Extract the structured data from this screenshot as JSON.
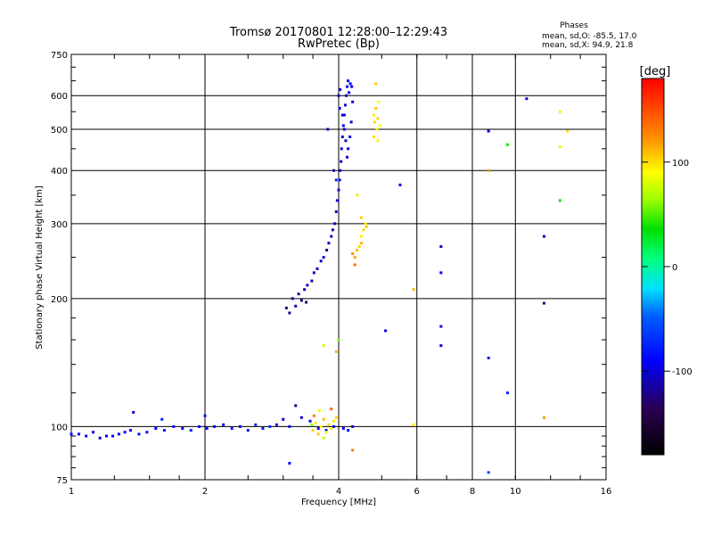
{
  "chart_data": {
    "type": "scatter",
    "title": "Tromsø 20170801 12:28:00–12:29:43",
    "subtitle": "RwPretec (Bp)",
    "xlabel": "Frequency [MHz]",
    "ylabel": "Stationary phase Virtual Height [km]",
    "x_scale": "log",
    "y_scale": "log",
    "xlim": [
      1,
      16
    ],
    "ylim": [
      75,
      750
    ],
    "x_major_ticks": [
      1,
      2,
      4,
      8,
      16
    ],
    "x_minor_ticks": [
      6,
      10
    ],
    "x_tick_labels": [
      "1",
      "2",
      "4",
      "6",
      "8",
      "10",
      "16"
    ],
    "y_ticks": [
      75,
      100,
      200,
      300,
      400,
      500,
      600,
      750
    ],
    "y_tick_labels": [
      "75",
      "100",
      "200",
      "300",
      "400",
      "500",
      "600",
      "750"
    ],
    "grid": true,
    "phase_stats": {
      "heading": "Phases",
      "line_o": "mean, sd,O: -85.5, 17.0",
      "line_x": "mean, sd,X:  94.9, 21.8"
    },
    "colorbar": {
      "label": "[deg]",
      "min": -180,
      "max": 180,
      "ticks": [
        -100,
        0,
        100
      ],
      "tick_labels": [
        "-100",
        "0",
        "100"
      ]
    },
    "series": [
      {
        "mode": "O",
        "points": [
          [
            1.0,
            96,
            -90
          ],
          [
            1.04,
            96,
            -95
          ],
          [
            1.08,
            95,
            -88
          ],
          [
            1.12,
            97,
            -92
          ],
          [
            1.16,
            94,
            -100
          ],
          [
            1.2,
            95,
            -90
          ],
          [
            1.24,
            95,
            -85
          ],
          [
            1.28,
            96,
            -95
          ],
          [
            1.32,
            97,
            -88
          ],
          [
            1.36,
            98,
            -92
          ],
          [
            1.38,
            108,
            -110
          ],
          [
            1.42,
            96,
            -85
          ],
          [
            1.48,
            97,
            -92
          ],
          [
            1.55,
            99,
            -88
          ],
          [
            1.62,
            98,
            -80
          ],
          [
            1.7,
            100,
            -85
          ],
          [
            1.78,
            99,
            -90
          ],
          [
            1.86,
            98,
            -75
          ],
          [
            1.94,
            100,
            -85
          ],
          [
            2.02,
            99,
            -80
          ],
          [
            2.1,
            100,
            -90
          ],
          [
            2.2,
            101,
            -85
          ],
          [
            2.3,
            99,
            -80
          ],
          [
            2.4,
            100,
            -85
          ],
          [
            2.5,
            98,
            -82
          ],
          [
            2.6,
            101,
            -75
          ],
          [
            2.7,
            99,
            -80
          ],
          [
            2.8,
            100,
            -70
          ],
          [
            2.9,
            101,
            -85
          ],
          [
            3.0,
            104,
            -110
          ],
          [
            3.1,
            100,
            -90
          ],
          [
            3.2,
            112,
            -120
          ],
          [
            3.3,
            105,
            -100
          ],
          [
            3.45,
            103,
            -95
          ],
          [
            3.6,
            99,
            -100
          ],
          [
            3.75,
            98,
            -85
          ],
          [
            3.9,
            100,
            -95
          ],
          [
            4.1,
            99,
            -90
          ],
          [
            4.2,
            98,
            -85
          ],
          [
            4.3,
            100,
            -95
          ],
          [
            3.1,
            82,
            -90
          ],
          [
            1.6,
            104,
            -75
          ],
          [
            2.0,
            106,
            -80
          ],
          [
            3.05,
            190,
            -130
          ],
          [
            3.1,
            185,
            -120
          ],
          [
            3.15,
            200,
            -115
          ],
          [
            3.2,
            192,
            -110
          ],
          [
            3.25,
            205,
            -120
          ],
          [
            3.3,
            198,
            -125
          ],
          [
            3.35,
            210,
            -110
          ],
          [
            3.4,
            215,
            -105
          ],
          [
            3.48,
            220,
            -115
          ],
          [
            3.52,
            230,
            -110
          ],
          [
            3.58,
            235,
            -105
          ],
          [
            3.65,
            245,
            -110
          ],
          [
            3.7,
            250,
            -105
          ],
          [
            3.76,
            260,
            -115
          ],
          [
            3.8,
            270,
            -110
          ],
          [
            3.85,
            280,
            -105
          ],
          [
            3.88,
            290,
            -110
          ],
          [
            3.92,
            300,
            -100
          ],
          [
            3.95,
            320,
            -105
          ],
          [
            3.97,
            340,
            -100
          ],
          [
            4.0,
            360,
            -95
          ],
          [
            4.02,
            380,
            -100
          ],
          [
            4.03,
            400,
            -95
          ],
          [
            4.05,
            420,
            -100
          ],
          [
            4.06,
            450,
            -105
          ],
          [
            4.08,
            480,
            -100
          ],
          [
            4.1,
            510,
            -95
          ],
          [
            4.12,
            540,
            -100
          ],
          [
            4.14,
            570,
            -105
          ],
          [
            4.16,
            600,
            -100
          ],
          [
            4.18,
            630,
            -95
          ],
          [
            4.2,
            650,
            -100
          ],
          [
            4.03,
            620,
            -100
          ],
          [
            4.0,
            600,
            -105
          ],
          [
            4.02,
            560,
            -100
          ],
          [
            4.22,
            610,
            -95
          ],
          [
            4.25,
            640,
            -90
          ],
          [
            4.28,
            630,
            -95
          ],
          [
            4.3,
            580,
            -100
          ],
          [
            4.27,
            520,
            -105
          ],
          [
            4.24,
            480,
            -100
          ],
          [
            4.2,
            450,
            -95
          ],
          [
            4.18,
            430,
            -100
          ],
          [
            4.15,
            470,
            -105
          ],
          [
            4.12,
            500,
            -95
          ],
          [
            4.08,
            540,
            -100
          ],
          [
            3.78,
            500,
            -110
          ],
          [
            3.9,
            400,
            -120
          ],
          [
            3.95,
            380,
            -75
          ],
          [
            3.38,
            196,
            -130
          ],
          [
            5.5,
            370,
            -95
          ],
          [
            6.8,
            265,
            -110
          ],
          [
            6.8,
            230,
            -95
          ],
          [
            6.8,
            172,
            -100
          ],
          [
            6.8,
            155,
            -95
          ],
          [
            5.1,
            168,
            -100
          ],
          [
            8.7,
            495,
            -95
          ],
          [
            8.7,
            145,
            -80
          ],
          [
            9.6,
            120,
            -75
          ],
          [
            8.7,
            78,
            -60
          ],
          [
            10.6,
            590,
            -100
          ],
          [
            11.6,
            280,
            -110
          ],
          [
            11.6,
            195,
            -120
          ]
        ]
      },
      {
        "mode": "X",
        "points": [
          [
            3.5,
            98,
            100
          ],
          [
            3.55,
            102,
            95
          ],
          [
            3.6,
            96,
            105
          ],
          [
            3.65,
            100,
            90
          ],
          [
            3.7,
            104,
            110
          ],
          [
            3.75,
            97,
            95
          ],
          [
            3.8,
            101,
            100
          ],
          [
            3.85,
            99,
            85
          ],
          [
            3.9,
            103,
            95
          ],
          [
            3.95,
            105,
            100
          ],
          [
            3.52,
            106,
            130
          ],
          [
            3.62,
            109,
            85
          ],
          [
            3.7,
            94,
            75
          ],
          [
            3.48,
            101,
            60
          ],
          [
            3.85,
            110,
            140
          ],
          [
            4.3,
            255,
            120
          ],
          [
            4.35,
            250,
            115
          ],
          [
            4.4,
            260,
            110
          ],
          [
            4.45,
            265,
            100
          ],
          [
            4.5,
            280,
            95
          ],
          [
            4.55,
            290,
            100
          ],
          [
            4.6,
            300,
            95
          ],
          [
            4.5,
            310,
            105
          ],
          [
            4.35,
            240,
            135
          ],
          [
            4.4,
            350,
            95
          ],
          [
            4.62,
            295,
            105
          ],
          [
            4.5,
            270,
            110
          ],
          [
            4.8,
            540,
            95
          ],
          [
            4.82,
            520,
            100
          ],
          [
            4.85,
            560,
            105
          ],
          [
            4.88,
            500,
            95
          ],
          [
            4.9,
            530,
            100
          ],
          [
            4.92,
            580,
            90
          ],
          [
            4.85,
            640,
            105
          ],
          [
            4.8,
            480,
            100
          ],
          [
            4.95,
            510,
            90
          ],
          [
            4.9,
            470,
            95
          ],
          [
            4.0,
            160,
            60
          ],
          [
            3.95,
            150,
            110
          ],
          [
            4.3,
            88,
            130
          ],
          [
            3.7,
            155,
            80
          ],
          [
            5.9,
            210,
            110
          ],
          [
            5.9,
            101,
            95
          ],
          [
            8.7,
            400,
            120
          ],
          [
            9.6,
            460,
            40
          ],
          [
            12.6,
            550,
            95
          ],
          [
            12.6,
            455,
            85
          ],
          [
            12.6,
            340,
            40
          ],
          [
            13.1,
            495,
            100
          ],
          [
            11.6,
            105,
            120
          ]
        ]
      }
    ]
  }
}
